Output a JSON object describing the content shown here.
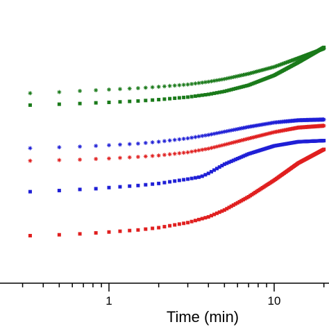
{
  "chart_data": {
    "type": "scatter",
    "title": "",
    "xlabel": "Time (min)",
    "ylabel": "",
    "x_scale": "log",
    "xlim": [
      0.21,
      21
    ],
    "ylim": [
      0,
      100
    ],
    "x_tick_labels": [
      {
        "value": 1,
        "label": "1"
      },
      {
        "value": 10,
        "label": "10"
      }
    ],
    "grid": false,
    "legend": "none",
    "series": [
      {
        "color": "#1a7a1a",
        "marker": "asterisk",
        "x": [
          0.33,
          0.5,
          0.67,
          0.83,
          1.0,
          1.5,
          2,
          3,
          4,
          5,
          7,
          10,
          14,
          20
        ],
        "y": [
          79,
          79.5,
          80,
          80.3,
          80.6,
          81.2,
          81.8,
          82.8,
          84,
          85.2,
          87.5,
          90.5,
          94.3,
          98.5
        ]
      },
      {
        "color": "#1a7a1a",
        "marker": "square",
        "x": [
          0.33,
          0.5,
          0.67,
          0.83,
          1.0,
          1.5,
          2,
          3,
          4,
          5,
          7,
          10,
          14,
          20
        ],
        "y": [
          73.8,
          74.2,
          74.5,
          74.8,
          75,
          75.6,
          76.2,
          77.3,
          78.5,
          79.8,
          82.5,
          86.8,
          92.5,
          99
        ]
      },
      {
        "color": "#1f1fd6",
        "marker": "asterisk",
        "x": [
          0.33,
          0.5,
          0.67,
          0.83,
          1.0,
          1.5,
          2,
          3,
          4,
          5,
          7,
          10,
          14,
          20
        ],
        "y": [
          55,
          55.4,
          55.7,
          56,
          56.3,
          57,
          57.8,
          59.3,
          60.8,
          62.2,
          64.3,
          66.2,
          67.2,
          67.5
        ]
      },
      {
        "color": "#e01f1f",
        "marker": "asterisk",
        "x": [
          0.33,
          0.5,
          0.67,
          0.83,
          1.0,
          1.5,
          2,
          3,
          4,
          5,
          7,
          10,
          14,
          20
        ],
        "y": [
          49.5,
          49.8,
          50,
          50.3,
          50.5,
          51.2,
          51.8,
          53.2,
          54.8,
          56.5,
          59.2,
          62,
          64,
          64.8
        ]
      },
      {
        "color": "#1f1fd6",
        "marker": "square",
        "x": [
          0.33,
          0.5,
          0.67,
          0.83,
          1.0,
          1.5,
          2,
          3,
          3.6,
          4,
          5,
          7,
          10,
          14,
          20
        ],
        "y": [
          36,
          36.5,
          37,
          37.3,
          37.8,
          38.7,
          39.6,
          41.5,
          42.5,
          44,
          48,
          52.5,
          56,
          57.8,
          58.3
        ]
      },
      {
        "color": "#e01f1f",
        "marker": "square",
        "x": [
          0.33,
          0.5,
          0.67,
          0.83,
          1.0,
          1.5,
          2,
          3,
          4,
          5,
          7,
          10,
          14,
          20
        ],
        "y": [
          16.8,
          17.2,
          17.6,
          18,
          18.4,
          19.3,
          20.3,
          22.5,
          25,
          28,
          33.8,
          41,
          48.5,
          54.5
        ]
      }
    ]
  }
}
